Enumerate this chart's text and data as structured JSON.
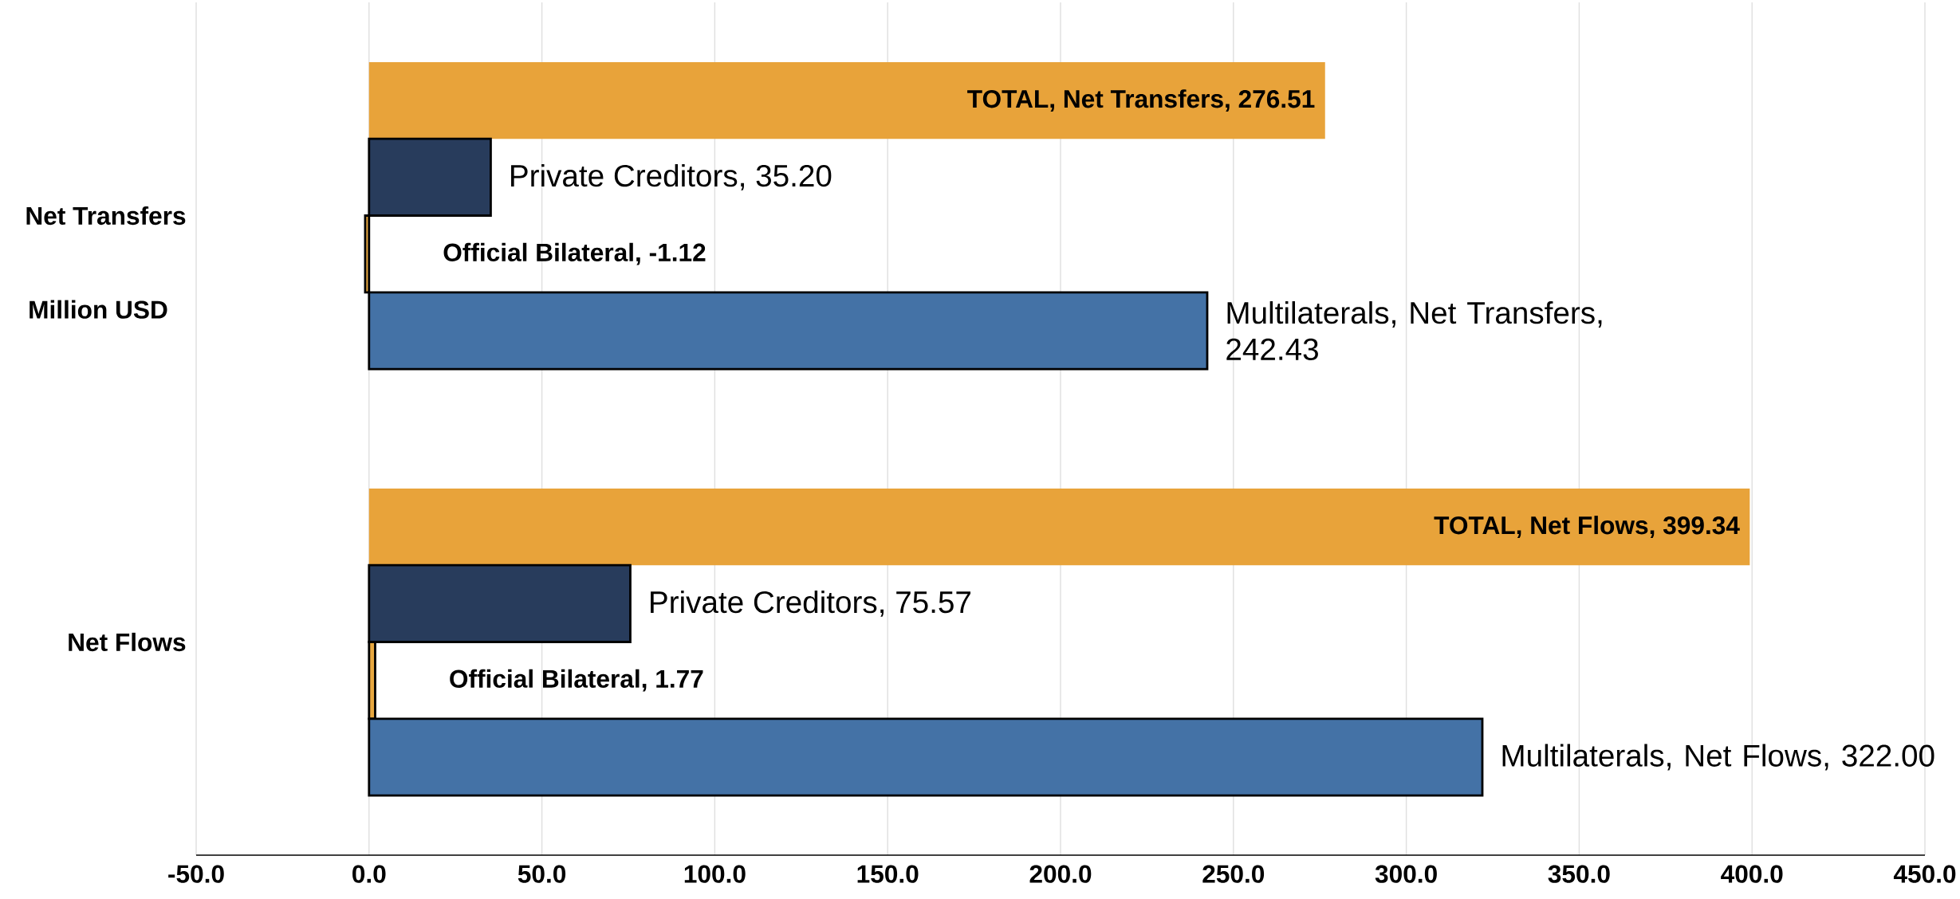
{
  "chart_data": {
    "type": "bar",
    "orientation": "horizontal",
    "categories": [
      "Net Transfers",
      "Net Flows"
    ],
    "ylabel": "Million USD",
    "series": [
      {
        "color": "#e8a33a",
        "values": [
          276.51,
          399.34
        ],
        "value_labels": [
          "TOTAL, Net Transfers, 276.51",
          "TOTAL, Net Flows, 399.34"
        ]
      },
      {
        "color": "#283c5c",
        "values": [
          35.2,
          75.57
        ],
        "value_labels": [
          "Private Creditors, 35.20",
          "Private Creditors, 75.57"
        ]
      },
      {
        "color": "#e8a840",
        "values": [
          -1.12,
          1.77
        ],
        "value_labels": [
          "Official Bilateral, -1.12",
          "Official Bilateral, 1.77"
        ]
      },
      {
        "color": "#4472a6",
        "values": [
          242.43,
          322.0
        ],
        "value_labels": [
          "Multilaterals, Net Transfers, 242.43",
          "Multilaterals, Net Flows, 322.00"
        ]
      }
    ],
    "xlim": [
      -50,
      450
    ],
    "xticks": [
      {
        "value": -50,
        "label": "-50.0"
      },
      {
        "value": 0,
        "label": "0.0"
      },
      {
        "value": 50,
        "label": "50.0"
      },
      {
        "value": 100,
        "label": "100.0"
      },
      {
        "value": 150,
        "label": "150.0"
      },
      {
        "value": 200,
        "label": "200.0"
      },
      {
        "value": 250,
        "label": "250.0"
      },
      {
        "value": 300,
        "label": "300.0"
      },
      {
        "value": 350,
        "label": "350.0"
      },
      {
        "value": 400,
        "label": "400.0"
      },
      {
        "value": 450,
        "label": "450.0"
      }
    ],
    "grid": "x"
  }
}
